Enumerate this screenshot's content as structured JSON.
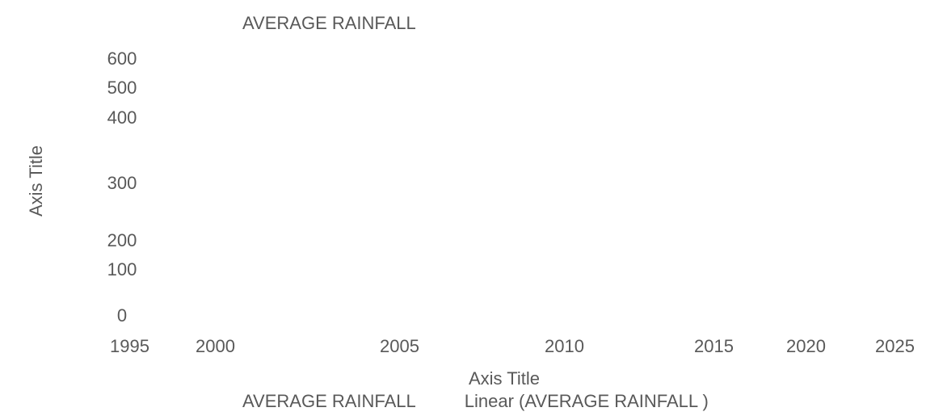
{
  "chart_data": {
    "type": "scatter",
    "title": "AVERAGE RAINFALL",
    "xlabel": "Axis Title",
    "ylabel": "Axis Title",
    "xlim": [
      1995,
      2025
    ],
    "ylim": [
      0,
      600
    ],
    "x_ticks": [
      "1995",
      "2000",
      "2005",
      "2010",
      "2015",
      "2020",
      "2025"
    ],
    "y_ticks": [
      "600",
      "500",
      "400",
      "300",
      "200",
      "100",
      "0"
    ],
    "series": [
      {
        "name": "AVERAGE RAINFALL",
        "x": [],
        "y": []
      }
    ],
    "trendline": {
      "name": "Linear (AVERAGE RAINFALL )",
      "type": "linear"
    },
    "legend": [
      "AVERAGE RAINFALL",
      "Linear (AVERAGE RAINFALL )"
    ],
    "legend_position": "bottom",
    "grid": false
  }
}
